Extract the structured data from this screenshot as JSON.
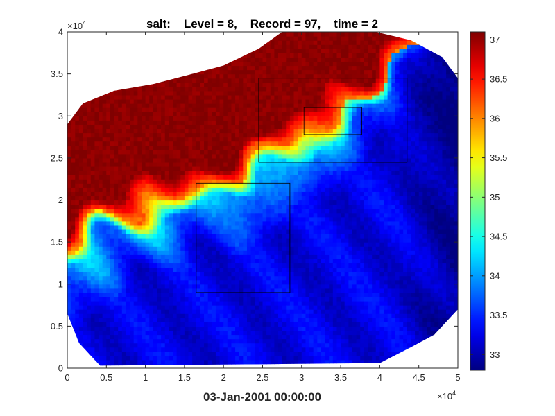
{
  "chart_data": {
    "type": "heatmap",
    "title": "salt:    Level = 8,    Record = 97,    time = 2",
    "xlabel": "03-Jan-2001 00:00:00",
    "ylabel": "",
    "x_exponent_base": "×10",
    "x_exponent_power": "4",
    "y_exponent_base": "×10",
    "y_exponent_power": "4",
    "xlim": [
      0,
      50000
    ],
    "ylim": [
      0,
      40000
    ],
    "x_ticks": [
      0,
      5000,
      10000,
      15000,
      20000,
      25000,
      30000,
      35000,
      40000,
      45000,
      50000
    ],
    "x_tick_labels": [
      "0",
      "0.5",
      "1",
      "1.5",
      "2",
      "2.5",
      "3",
      "3.5",
      "4",
      "4.5",
      "5"
    ],
    "y_ticks": [
      0,
      5000,
      10000,
      15000,
      20000,
      25000,
      30000,
      35000,
      40000
    ],
    "y_tick_labels": [
      "0",
      "0.5",
      "1",
      "1.5",
      "2",
      "2.5",
      "3",
      "3.5",
      "4"
    ],
    "colorbar": {
      "colormap": "jet",
      "clim": [
        32.8,
        37.1
      ],
      "ticks": [
        33,
        33.5,
        34,
        34.5,
        35,
        35.5,
        36,
        36.5,
        37
      ],
      "tick_labels": [
        "33",
        "33.5",
        "34",
        "34.5",
        "35",
        "35.5",
        "36",
        "36.5",
        "37"
      ]
    },
    "domain_polygon": [
      [
        0,
        13000
      ],
      [
        0,
        29000
      ],
      [
        2000,
        31500
      ],
      [
        6000,
        33000
      ],
      [
        11000,
        33800
      ],
      [
        16000,
        35000
      ],
      [
        20000,
        36000
      ],
      [
        24500,
        38000
      ],
      [
        27500,
        40000
      ],
      [
        39500,
        40000
      ],
      [
        44000,
        39000
      ],
      [
        48000,
        37000
      ],
      [
        50000,
        34500
      ],
      [
        50000,
        7000
      ],
      [
        47000,
        4000
      ],
      [
        44000,
        2500
      ],
      [
        40000,
        600
      ],
      [
        4200,
        300
      ],
      [
        1500,
        3000
      ],
      [
        0,
        6500
      ]
    ],
    "salinity_field": {
      "grid_spacing": 500,
      "front_curve": [
        [
          0,
          13500
        ],
        [
          2000,
          15500
        ],
        [
          4000,
          17000
        ],
        [
          6000,
          17800
        ],
        [
          8000,
          18800
        ],
        [
          10000,
          20000
        ],
        [
          12000,
          20300
        ],
        [
          14000,
          20500
        ],
        [
          16000,
          21500
        ],
        [
          18000,
          22000
        ],
        [
          20000,
          22300
        ],
        [
          22000,
          22500
        ],
        [
          24000,
          24000
        ],
        [
          26000,
          25500
        ],
        [
          28000,
          26500
        ],
        [
          30000,
          27800
        ],
        [
          32000,
          28800
        ],
        [
          34000,
          29800
        ],
        [
          36000,
          31000
        ],
        [
          38000,
          33000
        ],
        [
          40000,
          35000
        ],
        [
          42000,
          37500
        ],
        [
          44000,
          39500
        ]
      ],
      "saturated_value": 37.05,
      "front_value": 36.0,
      "far_field_max": 34.5,
      "far_field_min": 33.1,
      "fresh_corner": [
        50000,
        40000
      ],
      "fresh_corner_value": 32.9
    },
    "boxes": [
      {
        "name": "box-large-upper",
        "x": [
          24500,
          43500
        ],
        "y": [
          24500,
          34500
        ]
      },
      {
        "name": "box-small-inner",
        "x": [
          30300,
          37700
        ],
        "y": [
          27800,
          31000
        ]
      },
      {
        "name": "box-lower",
        "x": [
          16500,
          28500
        ],
        "y": [
          9000,
          22000
        ]
      }
    ]
  }
}
